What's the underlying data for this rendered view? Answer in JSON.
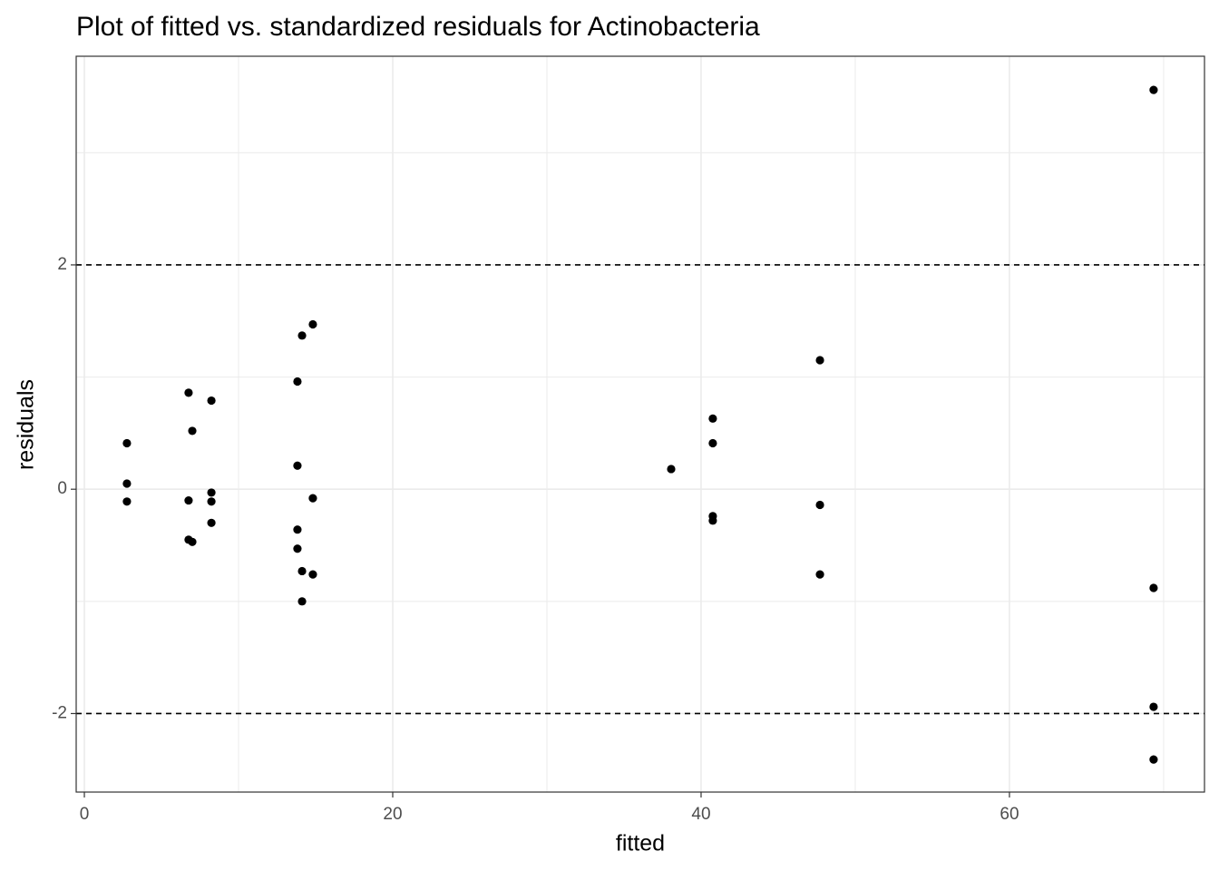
{
  "chart_data": {
    "type": "scatter",
    "title": "Plot of fitted vs. standardized residuals for Actinobacteria",
    "x_label": "fitted",
    "y_label": "residuals",
    "color": "#000000",
    "grid": true,
    "xlim": [
      -0.53,
      72.65
    ],
    "ylim": [
      -2.7,
      3.86
    ],
    "xticks": [
      0,
      20,
      40,
      60
    ],
    "yticks": [
      -2,
      0,
      2
    ],
    "x_minor_grid": [
      10,
      30,
      50,
      70
    ],
    "y_minor_grid": [
      -1,
      1,
      3
    ],
    "hlines": [
      -2,
      2
    ],
    "series": [
      {
        "name": "residuals",
        "color": "#000000",
        "x": [
          2.76,
          2.76,
          2.76,
          6.76,
          6.76,
          6.76,
          7.0,
          7.0,
          8.24,
          8.24,
          8.24,
          8.24,
          13.82,
          13.82,
          13.82,
          13.82,
          14.12,
          14.12,
          14.12,
          14.82,
          14.82,
          14.82,
          38.06,
          40.76,
          40.76,
          40.76,
          40.76,
          47.71,
          47.71,
          47.71,
          69.35,
          69.35,
          69.35,
          69.35
        ],
        "values": [
          0.41,
          0.05,
          -0.11,
          0.86,
          -0.1,
          -0.45,
          0.52,
          -0.47,
          0.79,
          -0.03,
          -0.11,
          -0.3,
          0.96,
          0.21,
          -0.36,
          -0.53,
          1.37,
          -0.73,
          -1.0,
          1.47,
          -0.08,
          -0.76,
          0.18,
          0.63,
          0.41,
          -0.24,
          -0.28,
          1.15,
          -0.14,
          -0.76,
          3.56,
          -0.88,
          -1.94,
          -2.41
        ]
      }
    ]
  }
}
